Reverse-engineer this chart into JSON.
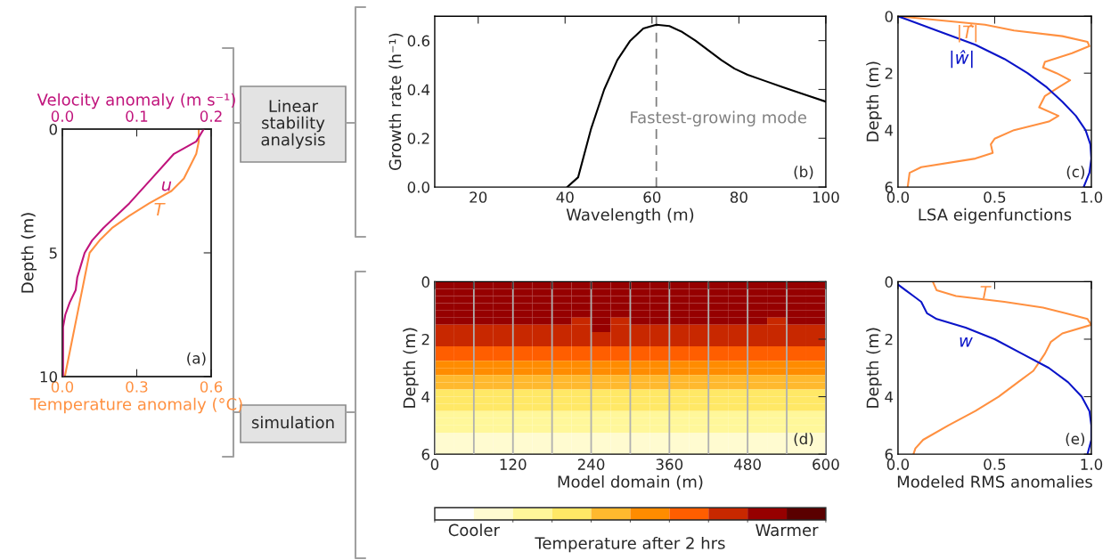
{
  "chart_data": [
    {
      "type": "line",
      "xlabel": "Temperature anomaly (°C)",
      "x2label": "Velocity anomaly (m s⁻¹)",
      "ylabel": "Depth (m)",
      "xlim": [
        0,
        0.6
      ],
      "xticks": [
        {
          "value": 0,
          "label": "0.0"
        },
        {
          "value": 0.3,
          "label": "0.3"
        },
        {
          "value": 0.6,
          "label": "0.6"
        }
      ],
      "x2lim": [
        0,
        0.2
      ],
      "x2ticks": [
        {
          "value": 0,
          "label": "0.0"
        },
        {
          "value": 0.1,
          "label": "0.1"
        },
        {
          "value": 0.2,
          "label": "0.2"
        }
      ],
      "ylim": [
        10,
        0
      ],
      "yticks": [
        0,
        5,
        10
      ],
      "legend": false,
      "annotations": [
        "(a)"
      ],
      "series": [
        {
          "name": "u",
          "color": "#c0147c",
          "axis": "x2",
          "x": [
            0.19,
            0.18,
            0.15,
            0.12,
            0.09,
            0.055,
            0.04,
            0.03,
            0.025,
            0.02,
            0.018,
            0.01,
            0.004,
            0.001,
            0.001,
            0.001
          ],
          "values": [
            0,
            0.5,
            1,
            2,
            3,
            4,
            4.5,
            5,
            5.5,
            6,
            6.5,
            7,
            7.5,
            8,
            9,
            10
          ]
        },
        {
          "name": "T",
          "color": "#ff9040",
          "x": [
            0.55,
            0.55,
            0.54,
            0.49,
            0.44,
            0.35,
            0.27,
            0.2,
            0.15,
            0.11,
            0.09,
            0.07,
            0.05,
            0.03,
            0.01
          ],
          "values": [
            0,
            0.5,
            1,
            2,
            2.5,
            3,
            3.5,
            4,
            4.5,
            5,
            6,
            7,
            8,
            9,
            10
          ]
        }
      ]
    },
    {
      "type": "other",
      "annotations": [
        "Linear stability analysis",
        "simulation"
      ]
    },
    {
      "type": "line",
      "xlabel": "Wavelength (m)",
      "ylabel": "Growth rate (h⁻¹)",
      "xlim": [
        10,
        100
      ],
      "xticks": [
        20,
        40,
        60,
        80,
        100
      ],
      "ylim": [
        0,
        0.7
      ],
      "yticks": [
        {
          "value": 0,
          "label": "0.0"
        },
        {
          "value": 0.2,
          "label": "0.2"
        },
        {
          "value": 0.4,
          "label": "0.4"
        },
        {
          "value": 0.6,
          "label": "0.6"
        }
      ],
      "legend": false,
      "annotations": [
        "(b)"
      ],
      "ref_lines": [
        {
          "axis": "x",
          "value": 61,
          "label": "Fastest-growing mode",
          "color": "#808080",
          "line_style": "dashed"
        }
      ],
      "series": [
        {
          "color": "#000000",
          "x": [
            40.5,
            43,
            46,
            49,
            52,
            55,
            58,
            61,
            64,
            67,
            70,
            73,
            76,
            79,
            82,
            86,
            90,
            95,
            100
          ],
          "values": [
            0,
            0.04,
            0.24,
            0.4,
            0.52,
            0.6,
            0.65,
            0.665,
            0.66,
            0.635,
            0.6,
            0.56,
            0.52,
            0.485,
            0.46,
            0.435,
            0.41,
            0.38,
            0.35
          ]
        }
      ]
    },
    {
      "type": "line",
      "xlabel": "LSA eigenfunctions",
      "ylabel": "Depth (m)",
      "xlim": [
        0,
        1
      ],
      "xticks": [
        {
          "value": 0,
          "label": "0.0"
        },
        {
          "value": 0.5,
          "label": "0.5"
        },
        {
          "value": 1,
          "label": "1.0"
        }
      ],
      "ylim": [
        6,
        0
      ],
      "yticks": [
        0,
        2,
        4,
        6
      ],
      "legend": false,
      "annotations": [
        "(c)"
      ],
      "series": [
        {
          "name": "|T̂|",
          "color": "#ff9040",
          "x": [
            0,
            0.45,
            0.6,
            0.85,
            0.98,
            0.99,
            0.9,
            0.76,
            0.75,
            0.82,
            0.89,
            0.83,
            0.76,
            0.73,
            0.83,
            0.78,
            0.6,
            0.5,
            0.48,
            0.49,
            0.4,
            0.12,
            0.06,
            0.05
          ],
          "values": [
            0,
            0.3,
            0.5,
            0.7,
            0.9,
            1.05,
            1.3,
            1.6,
            1.8,
            2,
            2.25,
            2.5,
            2.8,
            3.2,
            3.5,
            3.7,
            4,
            4.3,
            4.5,
            4.8,
            5,
            5.3,
            5.5,
            6
          ]
        },
        {
          "name": "|ŵ|",
          "color": "#0a14c8",
          "x": [
            0,
            0.2,
            0.4,
            0.55,
            0.67,
            0.77,
            0.85,
            0.92,
            0.97,
            0.995,
            1,
            0.99,
            0.96
          ],
          "values": [
            0,
            0.5,
            1,
            1.5,
            2,
            2.5,
            3,
            3.5,
            4,
            4.5,
            5,
            5.5,
            6
          ]
        }
      ]
    },
    {
      "type": "heatmap",
      "xlabel": "Model domain (m)",
      "ylabel": "Depth (m)",
      "clabel": "Temperature after 2 hrs",
      "xlim": [
        0,
        600
      ],
      "xticks": [
        0,
        {
          "value": 60,
          "label": null
        },
        120,
        {
          "value": 180,
          "label": null
        },
        240,
        {
          "value": 300,
          "label": null
        },
        360,
        {
          "value": 420,
          "label": null
        },
        480,
        {
          "value": 540,
          "label": null
        },
        600
      ],
      "ylim": [
        6,
        0
      ],
      "yticks": [
        0,
        2,
        4,
        6
      ],
      "grid": "x",
      "clim": [
        0,
        10
      ],
      "cticks": [
        {
          "value": 1,
          "label": "Cooler"
        },
        {
          "value": 9,
          "label": "Warmer"
        }
      ],
      "colors": [
        "#ffffff",
        "#fffbd0",
        "#fff79a",
        "#ffe866",
        "#ffb92e",
        "#ff8c00",
        "#ff5e00",
        "#c82800",
        "#960000",
        "#5a0000"
      ],
      "annotations": [
        "(d)"
      ],
      "x": [
        15,
        45,
        75,
        105,
        135,
        165,
        195,
        225,
        255,
        285,
        315,
        345,
        375,
        405,
        435,
        465,
        495,
        525,
        555,
        585
      ],
      "y": [
        0.125,
        0.375,
        0.625,
        0.875,
        1.125,
        1.375,
        1.625,
        1.875,
        2.125,
        2.375,
        2.625,
        2.875,
        3.125,
        3.375,
        3.625,
        3.875,
        4.125,
        4.375,
        4.625,
        4.875,
        5.125,
        5.375,
        5.625,
        5.875
      ],
      "cells": [
        [
          8,
          8,
          8,
          8,
          8,
          8,
          8,
          8,
          8,
          8,
          8,
          8,
          8,
          8,
          8,
          8,
          8,
          8,
          8,
          8
        ],
        [
          8,
          8,
          8,
          8,
          8,
          8,
          8,
          8,
          8,
          8,
          8,
          8,
          8,
          8,
          8,
          8,
          8,
          8,
          8,
          8
        ],
        [
          8,
          8,
          8,
          8,
          8,
          8,
          8,
          8,
          8,
          8,
          8,
          8,
          8,
          8,
          8,
          8,
          8,
          8,
          8,
          8
        ],
        [
          8,
          8,
          8,
          8,
          8,
          8,
          8,
          8,
          8,
          8,
          8,
          8,
          8,
          8,
          8,
          8,
          8,
          8,
          8,
          8
        ],
        [
          8,
          8,
          8,
          8,
          8,
          8,
          8,
          8,
          8,
          8,
          8,
          8,
          8,
          8,
          8,
          8,
          8,
          8,
          8,
          8
        ],
        [
          8,
          8,
          8,
          8,
          8,
          8,
          8,
          7,
          8,
          7,
          8,
          8,
          8,
          8,
          8,
          8,
          8,
          7,
          8,
          8
        ],
        [
          7,
          7,
          7,
          7,
          7,
          7,
          7,
          7,
          8,
          7,
          7,
          7,
          7,
          7,
          7,
          7,
          7,
          7,
          7,
          7
        ],
        [
          7,
          7,
          7,
          7,
          7,
          7,
          7,
          7,
          7,
          7,
          7,
          7,
          7,
          7,
          7,
          7,
          7,
          7,
          7,
          7
        ],
        [
          7,
          7,
          7,
          7,
          7,
          7,
          7,
          7,
          7,
          7,
          7,
          7,
          7,
          7,
          7,
          7,
          7,
          7,
          7,
          7
        ],
        [
          6,
          6,
          6,
          6,
          6,
          6,
          6,
          6,
          6,
          6,
          6,
          6,
          6,
          6,
          6,
          6,
          6,
          6,
          6,
          6
        ],
        [
          6,
          6,
          6,
          6,
          6,
          6,
          6,
          6,
          6,
          6,
          6,
          6,
          6,
          6,
          6,
          6,
          6,
          6,
          6,
          6
        ],
        [
          5,
          5,
          5,
          5,
          5,
          5,
          5,
          5,
          5,
          5,
          5,
          5,
          5,
          5,
          5,
          5,
          5,
          5,
          5,
          5
        ],
        [
          5,
          5,
          5,
          5,
          5,
          5,
          5,
          5,
          5,
          5,
          5,
          5,
          5,
          5,
          5,
          5,
          5,
          5,
          5,
          5
        ],
        [
          4,
          4,
          4,
          4,
          4,
          4,
          4,
          4,
          4,
          4,
          4,
          4,
          4,
          4,
          4,
          4,
          4,
          4,
          4,
          4
        ],
        [
          4,
          4,
          4,
          4,
          4,
          4,
          4,
          4,
          4,
          4,
          4,
          4,
          4,
          4,
          4,
          4,
          4,
          4,
          4,
          4
        ],
        [
          3,
          3,
          3,
          3,
          3,
          3,
          3,
          3,
          3,
          3,
          3,
          3,
          3,
          3,
          3,
          3,
          3,
          3,
          3,
          3
        ],
        [
          3,
          3,
          3,
          3,
          3,
          3,
          3,
          3,
          3,
          3,
          3,
          3,
          3,
          3,
          3,
          3,
          3,
          3,
          3,
          3
        ],
        [
          3,
          3,
          3,
          3,
          3,
          3,
          3,
          3,
          3,
          3,
          3,
          3,
          3,
          3,
          3,
          3,
          3,
          3,
          3,
          3
        ],
        [
          2,
          2,
          2,
          2,
          2,
          2,
          2,
          2,
          2,
          2,
          2,
          2,
          2,
          2,
          2,
          2,
          2,
          2,
          2,
          2
        ],
        [
          2,
          2,
          2,
          2,
          2,
          2,
          2,
          2,
          2,
          2,
          2,
          2,
          2,
          2,
          2,
          2,
          2,
          2,
          2,
          2
        ],
        [
          2,
          2,
          2,
          2,
          2,
          2,
          2,
          2,
          2,
          2,
          2,
          2,
          2,
          2,
          2,
          2,
          2,
          2,
          2,
          2
        ],
        [
          1,
          1,
          1,
          1,
          1,
          1,
          1,
          1,
          1,
          1,
          1,
          1,
          1,
          1,
          1,
          1,
          1,
          1,
          1,
          1
        ],
        [
          1,
          1,
          1,
          1,
          1,
          1,
          1,
          1,
          1,
          1,
          1,
          1,
          1,
          1,
          1,
          1,
          1,
          1,
          1,
          1
        ],
        [
          1,
          1,
          1,
          1,
          1,
          1,
          1,
          1,
          1,
          1,
          1,
          1,
          1,
          1,
          1,
          1,
          1,
          1,
          1,
          1
        ]
      ]
    },
    {
      "type": "line",
      "xlabel": "Modeled RMS anomalies",
      "ylabel": "Depth (m)",
      "xlim": [
        0,
        1
      ],
      "xticks": [
        {
          "value": 0,
          "label": "0.0"
        },
        {
          "value": 0.5,
          "label": "0.5"
        },
        {
          "value": 1,
          "label": "1.0"
        }
      ],
      "ylim": [
        6,
        0
      ],
      "yticks": [
        0,
        2,
        4,
        6
      ],
      "legend": false,
      "annotations": [
        "(e)"
      ],
      "series": [
        {
          "name": "T",
          "color": "#ff9040",
          "x": [
            0.18,
            0.2,
            0.3,
            0.55,
            0.75,
            0.87,
            0.98,
            1,
            0.85,
            0.79,
            0.76,
            0.73,
            0.7,
            0.62,
            0.52,
            0.4,
            0.26,
            0.13,
            0.09,
            0.08
          ],
          "values": [
            0,
            0.3,
            0.5,
            0.7,
            0.9,
            1.1,
            1.3,
            1.5,
            1.8,
            2.1,
            2.5,
            2.8,
            3.1,
            3.5,
            4,
            4.5,
            5,
            5.5,
            5.8,
            6
          ]
        },
        {
          "name": "w",
          "color": "#0a14c8",
          "x": [
            0,
            0.08,
            0.12,
            0.15,
            0.2,
            0.35,
            0.5,
            0.64,
            0.78,
            0.88,
            0.95,
            0.99,
            1,
            1,
            0.98
          ],
          "values": [
            0.1,
            0.5,
            0.7,
            1.1,
            1.3,
            1.6,
            2,
            2.5,
            3,
            3.5,
            4,
            4.5,
            5,
            5.5,
            6
          ]
        }
      ]
    }
  ]
}
